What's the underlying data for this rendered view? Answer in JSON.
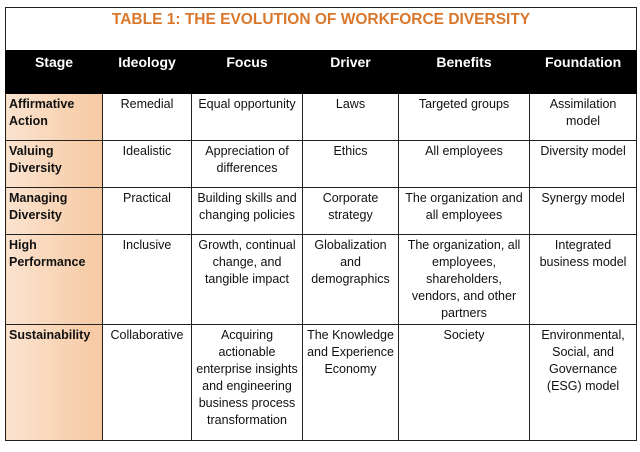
{
  "title": "TABLE 1:  THE EVOLUTION OF WORKFORCE DIVERSITY",
  "columns": [
    "Stage",
    "Ideology",
    "Focus",
    "Driver",
    "Benefits",
    "Foundation"
  ],
  "rows": [
    [
      "Affirmative Action",
      "Remedial",
      "Equal opportunity",
      "Laws",
      "Targeted groups",
      "Assimilation model"
    ],
    [
      "Valuing Diversity",
      "Idealistic",
      "Appreciation of differences",
      "Ethics",
      "All employees",
      "Diversity model"
    ],
    [
      "Managing Diversity",
      "Practical",
      "Building skills and changing policies",
      "Corporate strategy",
      "The organization and all employees",
      "Synergy model"
    ],
    [
      "High Performance",
      "Inclusive",
      "Growth, continual change, and tangible impact",
      "Globalization and demographics",
      "The organization, all employees, shareholders, vendors, and other partners",
      "Integrated business model"
    ],
    [
      "Sustainability",
      "Collaborative",
      "Acquiring actionable enterprise insights and engineering business process transformation",
      "The Knowledge and Experience Economy",
      "Society",
      "Environmental, Social, and Governance (ESG) model"
    ]
  ],
  "colors": {
    "title": "#d9782c",
    "header_bg": "#000000",
    "stage_bg": "#f6c9a2"
  }
}
